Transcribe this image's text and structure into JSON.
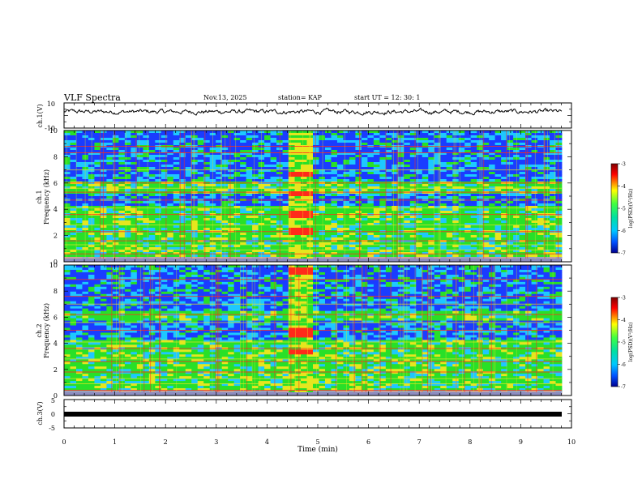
{
  "header": {
    "title": "VLF Spectra",
    "date": "Nov.13, 2025",
    "station": "station= KAP",
    "start_ut": "start  UT  =   12: 30: 1"
  },
  "chart_data": [
    {
      "panel": "ch1-waveform",
      "type": "line",
      "ylabel": "ch.1(V)",
      "ylim": [
        -10,
        10
      ],
      "yticklabels": [
        "10",
        "-10"
      ],
      "xlim": [
        0,
        10
      ],
      "series_description": "signal fluctuating around +3 V, roughly between -1 and 7"
    },
    {
      "panel": "ch1-spectrogram",
      "type": "heatmap",
      "ylabel_top": "ch.1",
      "ylabel": "Frequency  (kHz)",
      "ylim": [
        0,
        10
      ],
      "yticklabels": [
        "0",
        "2",
        "4",
        "6",
        "8",
        "10"
      ],
      "xlim": [
        0,
        10
      ],
      "colorbar": {
        "label": "log(PSD)(V²/Hz)",
        "range": [
          -7,
          -3
        ],
        "ticklabels": [
          "-3",
          "-4",
          "-5",
          "-6",
          "-7"
        ]
      },
      "bands_khz": {
        "quiet_blue": [
          [
            6.2,
            10
          ],
          [
            4.2,
            5.2
          ]
        ],
        "active_green": [
          [
            0.5,
            4.2
          ],
          [
            5.2,
            6.2
          ]
        ],
        "red_lines": [
          0.6,
          1.6,
          2.3,
          3.6,
          4.7,
          5.3,
          6.0,
          8.3,
          8.8
        ]
      },
      "burst_interval_min": [
        4.4,
        4.8
      ],
      "burst_bands_khz": [
        [
          2.0,
          2.6
        ],
        [
          3.3,
          3.8
        ],
        [
          5.0,
          5.4
        ],
        [
          6.5,
          6.9
        ]
      ]
    },
    {
      "panel": "ch2-spectrogram",
      "type": "heatmap",
      "ylabel_top": "ch.2",
      "ylabel": "Frequency  (kHz)",
      "ylim": [
        0,
        10
      ],
      "yticklabels": [
        "0",
        "2",
        "4",
        "6",
        "8",
        "10"
      ],
      "xlim": [
        0,
        10
      ],
      "colorbar": {
        "label": "log(PSD)(V²/Hz)",
        "range": [
          -7,
          -3
        ],
        "ticklabels": [
          "-3",
          "-4",
          "-5",
          "-6",
          "-7"
        ]
      },
      "bands_khz": {
        "quiet_blue": [
          [
            6.5,
            10
          ],
          [
            4.2,
            5.8
          ]
        ],
        "active_green": [
          [
            0.5,
            4.2
          ],
          [
            5.8,
            6.5
          ]
        ],
        "red_lines": [
          0.4,
          1.8,
          2.6,
          3.6,
          5.0,
          6.2,
          7.6,
          8.9
        ]
      },
      "burst_interval_min": [
        4.4,
        4.8
      ],
      "burst_bands_khz": [
        [
          3.2,
          3.6
        ],
        [
          4.5,
          5.1
        ],
        [
          9.2,
          9.8
        ]
      ]
    },
    {
      "panel": "ch3-waveform",
      "type": "line",
      "ylabel": "ch.3(V)",
      "ylim": [
        -5,
        5
      ],
      "yticklabels": [
        "5",
        "0",
        "-5"
      ],
      "xlim": [
        0,
        10
      ],
      "xlabel": "Time  (min)",
      "xticklabels": [
        "0",
        "1",
        "2",
        "3",
        "4",
        "5",
        "6",
        "7",
        "8",
        "9",
        "10"
      ],
      "series_description": "thick flat line near 0 V"
    }
  ],
  "colors": {
    "blue": "#1a3cff",
    "cyan": "#1ec8ff",
    "green": "#28e028",
    "yellow": "#e6e61e",
    "red": "#ff2a1a",
    "darkred": "#800000",
    "black": "#000000"
  }
}
